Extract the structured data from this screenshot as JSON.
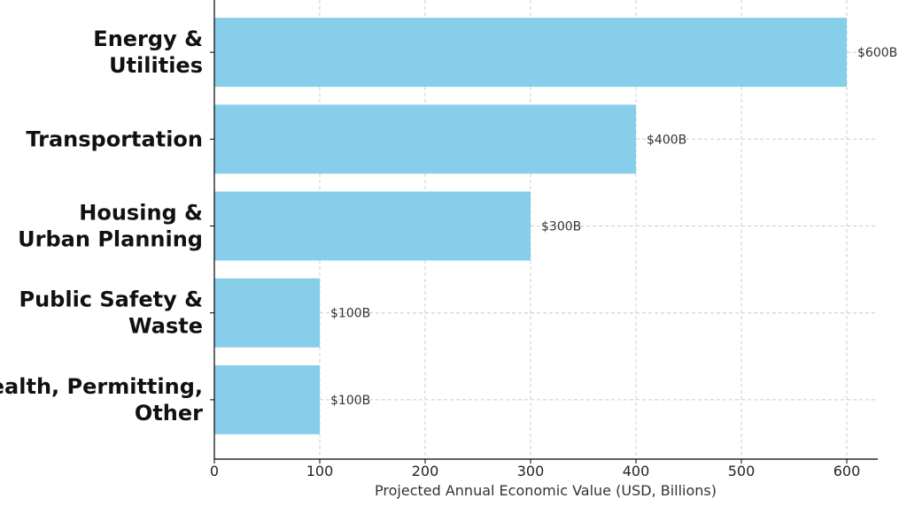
{
  "chart_data": {
    "type": "bar",
    "orientation": "horizontal",
    "categories": [
      [
        "Energy &",
        "Utilities"
      ],
      [
        "Transportation"
      ],
      [
        "Housing &",
        "Urban Planning"
      ],
      [
        "Public Safety &",
        "Waste"
      ],
      [
        "Health, Permitting,",
        "Other"
      ]
    ],
    "values": [
      600,
      400,
      300,
      100,
      100
    ],
    "value_labels": [
      "$600B",
      "$400B",
      "$300B",
      "$100B",
      "$100B"
    ],
    "xlabel": "Projected Annual Economic Value (USD, Billions)",
    "ylabel": "",
    "xlim": [
      0,
      630
    ],
    "xticks": [
      0,
      100,
      200,
      300,
      400,
      500,
      600
    ],
    "grid": true,
    "colors": {
      "bar": "#87ceeb",
      "grid": "#cccccc",
      "axis": "#000000"
    }
  }
}
